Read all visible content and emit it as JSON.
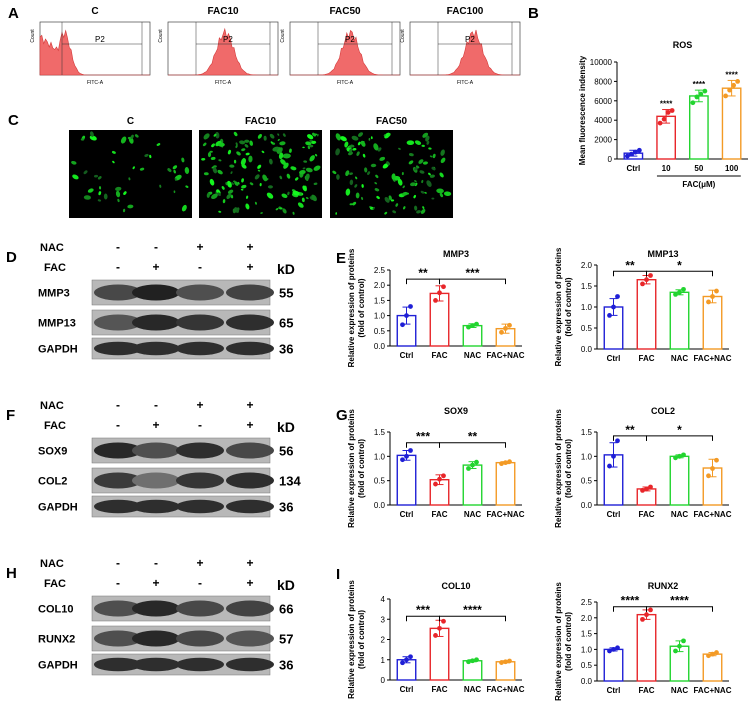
{
  "panels": {
    "A": "A",
    "B": "B",
    "C": "C",
    "D": "D",
    "E": "E",
    "F": "F",
    "G": "G",
    "H": "H",
    "I": "I"
  },
  "flow": {
    "titles": [
      "C",
      "FAC10",
      "FAC50",
      "FAC100"
    ],
    "gate_labels": [
      "P2",
      "P2",
      "P2",
      "P2"
    ],
    "xaxis_label": "FITC-A",
    "yaxis_label": "Count",
    "peaks": [
      0.22,
      0.52,
      0.55,
      0.58
    ]
  },
  "fluor": {
    "titles": [
      "C",
      "FAC10",
      "FAC50"
    ]
  },
  "western": [
    {
      "nac_label": "NAC",
      "fac_label": "FAC",
      "nac": [
        "-",
        "-",
        "+",
        "+"
      ],
      "fac": [
        "-",
        "+",
        "-",
        "+"
      ],
      "kd_label": "kD",
      "rows": [
        {
          "name": "MMP3",
          "kd": "55"
        },
        {
          "name": "MMP13",
          "kd": "65"
        },
        {
          "name": "GAPDH",
          "kd": "36"
        }
      ]
    },
    {
      "nac_label": "NAC",
      "fac_label": "FAC",
      "nac": [
        "-",
        "-",
        "+",
        "+"
      ],
      "fac": [
        "-",
        "+",
        "-",
        "+"
      ],
      "kd_label": "kD",
      "rows": [
        {
          "name": "SOX9",
          "kd": "56"
        },
        {
          "name": "COL2",
          "kd": "134"
        },
        {
          "name": "GAPDH",
          "kd": "36"
        }
      ]
    },
    {
      "nac_label": "NAC",
      "fac_label": "FAC",
      "nac": [
        "-",
        "-",
        "+",
        "+"
      ],
      "fac": [
        "-",
        "+",
        "-",
        "+"
      ],
      "kd_label": "kD",
      "rows": [
        {
          "name": "COL10",
          "kd": "66"
        },
        {
          "name": "RUNX2",
          "kd": "57"
        },
        {
          "name": "GAPDH",
          "kd": "36"
        }
      ]
    }
  ],
  "colors": {
    "blue": "#1f1fd6",
    "red": "#e8262a",
    "green": "#22d42f",
    "orange": "#f39a25"
  },
  "chart_data": [
    {
      "id": "B",
      "type": "bar",
      "title": "ROS",
      "ylabel": "Mean fluorescence indensity",
      "xlabel": "FAC(μM)",
      "categories": [
        "Ctrl",
        "10",
        "50",
        "100"
      ],
      "values": [
        600,
        4400,
        6500,
        7300
      ],
      "errors": [
        300,
        700,
        600,
        800
      ],
      "points": [
        [
          300,
          500,
          700,
          900
        ],
        [
          3700,
          4100,
          4800,
          5000
        ],
        [
          5800,
          6400,
          6700,
          7000
        ],
        [
          6500,
          7100,
          7600,
          8000
        ]
      ],
      "ylim": [
        0,
        10000
      ],
      "yticks": [
        "0",
        "2000",
        "4000",
        "6000",
        "8000",
        "10000"
      ],
      "sig": [
        "",
        "****",
        "****",
        "****"
      ],
      "brackets": []
    },
    {
      "id": "E1",
      "type": "bar",
      "title": "MMP3",
      "ylabel": "Relative expression of proteins\n(fold of control)",
      "categories": [
        "Ctrl",
        "FAC",
        "NAC",
        "FAC+NAC"
      ],
      "values": [
        1.0,
        1.73,
        0.67,
        0.57
      ],
      "errors": [
        0.28,
        0.25,
        0.06,
        0.15
      ],
      "points": [
        [
          0.7,
          1.0,
          1.3
        ],
        [
          1.5,
          1.75,
          1.95
        ],
        [
          0.62,
          0.67,
          0.72
        ],
        [
          0.45,
          0.58,
          0.68
        ]
      ],
      "ylim": [
        0,
        2.5
      ],
      "yticks": [
        "0.0",
        "0.5",
        "1.0",
        "1.5",
        "2.0",
        "2.5"
      ],
      "brackets": [
        {
          "from": 0,
          "to": 1,
          "label": "**",
          "y": 2.2
        },
        {
          "from": 1,
          "to": 3,
          "label": "***",
          "y": 2.2
        }
      ]
    },
    {
      "id": "E2",
      "type": "bar",
      "title": "MMP13",
      "ylabel": "Relative expression of proteins\n(fold of control)",
      "categories": [
        "Ctrl",
        "FAC",
        "NAC",
        "FAC+NAC"
      ],
      "values": [
        1.0,
        1.65,
        1.35,
        1.25
      ],
      "errors": [
        0.2,
        0.1,
        0.06,
        0.15
      ],
      "points": [
        [
          0.8,
          1.0,
          1.25
        ],
        [
          1.55,
          1.65,
          1.75
        ],
        [
          1.3,
          1.35,
          1.42
        ],
        [
          1.12,
          1.25,
          1.38
        ]
      ],
      "ylim": [
        0,
        2.0
      ],
      "yticks": [
        "0.0",
        "0.5",
        "1.0",
        "1.5",
        "2.0"
      ],
      "brackets": [
        {
          "from": 0,
          "to": 1,
          "label": "**",
          "y": 1.85
        },
        {
          "from": 1,
          "to": 3,
          "label": "*",
          "y": 1.85
        }
      ]
    },
    {
      "id": "G1",
      "type": "bar",
      "title": "SOX9",
      "ylabel": "Relative expression of proteins\n(fold of control)",
      "categories": [
        "Ctrl",
        "FAC",
        "NAC",
        "FAC+NAC"
      ],
      "values": [
        1.02,
        0.52,
        0.82,
        0.87
      ],
      "errors": [
        0.1,
        0.1,
        0.07,
        0.02
      ],
      "points": [
        [
          0.93,
          1.0,
          1.12
        ],
        [
          0.43,
          0.53,
          0.6
        ],
        [
          0.75,
          0.82,
          0.88
        ],
        [
          0.85,
          0.87,
          0.89
        ]
      ],
      "ylim": [
        0,
        1.5
      ],
      "yticks": [
        "0.0",
        "0.5",
        "1.0",
        "1.5"
      ],
      "brackets": [
        {
          "from": 0,
          "to": 1,
          "label": "***",
          "y": 1.28
        },
        {
          "from": 1,
          "to": 3,
          "label": "**",
          "y": 1.28
        }
      ]
    },
    {
      "id": "G2",
      "type": "bar",
      "title": "COL2",
      "ylabel": "Relative expression of proteins\n(fold of control)",
      "categories": [
        "Ctrl",
        "FAC",
        "NAC",
        "FAC+NAC"
      ],
      "values": [
        1.03,
        0.33,
        1.0,
        0.76
      ],
      "errors": [
        0.25,
        0.04,
        0.03,
        0.18
      ],
      "points": [
        [
          0.8,
          1.0,
          1.32
        ],
        [
          0.3,
          0.33,
          0.37
        ],
        [
          0.97,
          1.0,
          1.03
        ],
        [
          0.6,
          0.75,
          0.92
        ]
      ],
      "ylim": [
        0,
        1.5
      ],
      "yticks": [
        "0.0",
        "0.5",
        "1.0",
        "1.5"
      ],
      "brackets": [
        {
          "from": 0,
          "to": 1,
          "label": "**",
          "y": 1.42
        },
        {
          "from": 1,
          "to": 3,
          "label": "*",
          "y": 1.42
        }
      ]
    },
    {
      "id": "I1",
      "type": "bar",
      "title": "COL10",
      "ylabel": "Relative expression of proteins\n(fold of control)",
      "categories": [
        "Ctrl",
        "FAC",
        "NAC",
        "FAC+NAC"
      ],
      "values": [
        1.0,
        2.55,
        0.95,
        0.9
      ],
      "errors": [
        0.15,
        0.4,
        0.05,
        0.05
      ],
      "points": [
        [
          0.85,
          1.0,
          1.15
        ],
        [
          2.2,
          2.55,
          2.9
        ],
        [
          0.9,
          0.95,
          1.0
        ],
        [
          0.86,
          0.9,
          0.94
        ]
      ],
      "ylim": [
        0,
        4
      ],
      "yticks": [
        "0",
        "1",
        "2",
        "3",
        "4"
      ],
      "brackets": [
        {
          "from": 0,
          "to": 1,
          "label": "***",
          "y": 3.15
        },
        {
          "from": 1,
          "to": 3,
          "label": "****",
          "y": 3.15
        }
      ]
    },
    {
      "id": "I2",
      "type": "bar",
      "title": "RUNX2",
      "ylabel": "Relative expression of proteins\n(fold of control)",
      "categories": [
        "Ctrl",
        "FAC",
        "NAC",
        "FAC+NAC"
      ],
      "values": [
        1.0,
        2.1,
        1.1,
        0.85
      ],
      "errors": [
        0.05,
        0.15,
        0.17,
        0.05
      ],
      "points": [
        [
          0.95,
          1.0,
          1.05
        ],
        [
          1.95,
          2.1,
          2.25
        ],
        [
          0.95,
          1.1,
          1.27
        ],
        [
          0.8,
          0.85,
          0.9
        ]
      ],
      "ylim": [
        0,
        2.5
      ],
      "yticks": [
        "0.0",
        "0.5",
        "1.0",
        "1.5",
        "2.0",
        "2.5"
      ],
      "brackets": [
        {
          "from": 0,
          "to": 1,
          "label": "****",
          "y": 2.35
        },
        {
          "from": 1,
          "to": 3,
          "label": "****",
          "y": 2.35
        }
      ]
    }
  ]
}
